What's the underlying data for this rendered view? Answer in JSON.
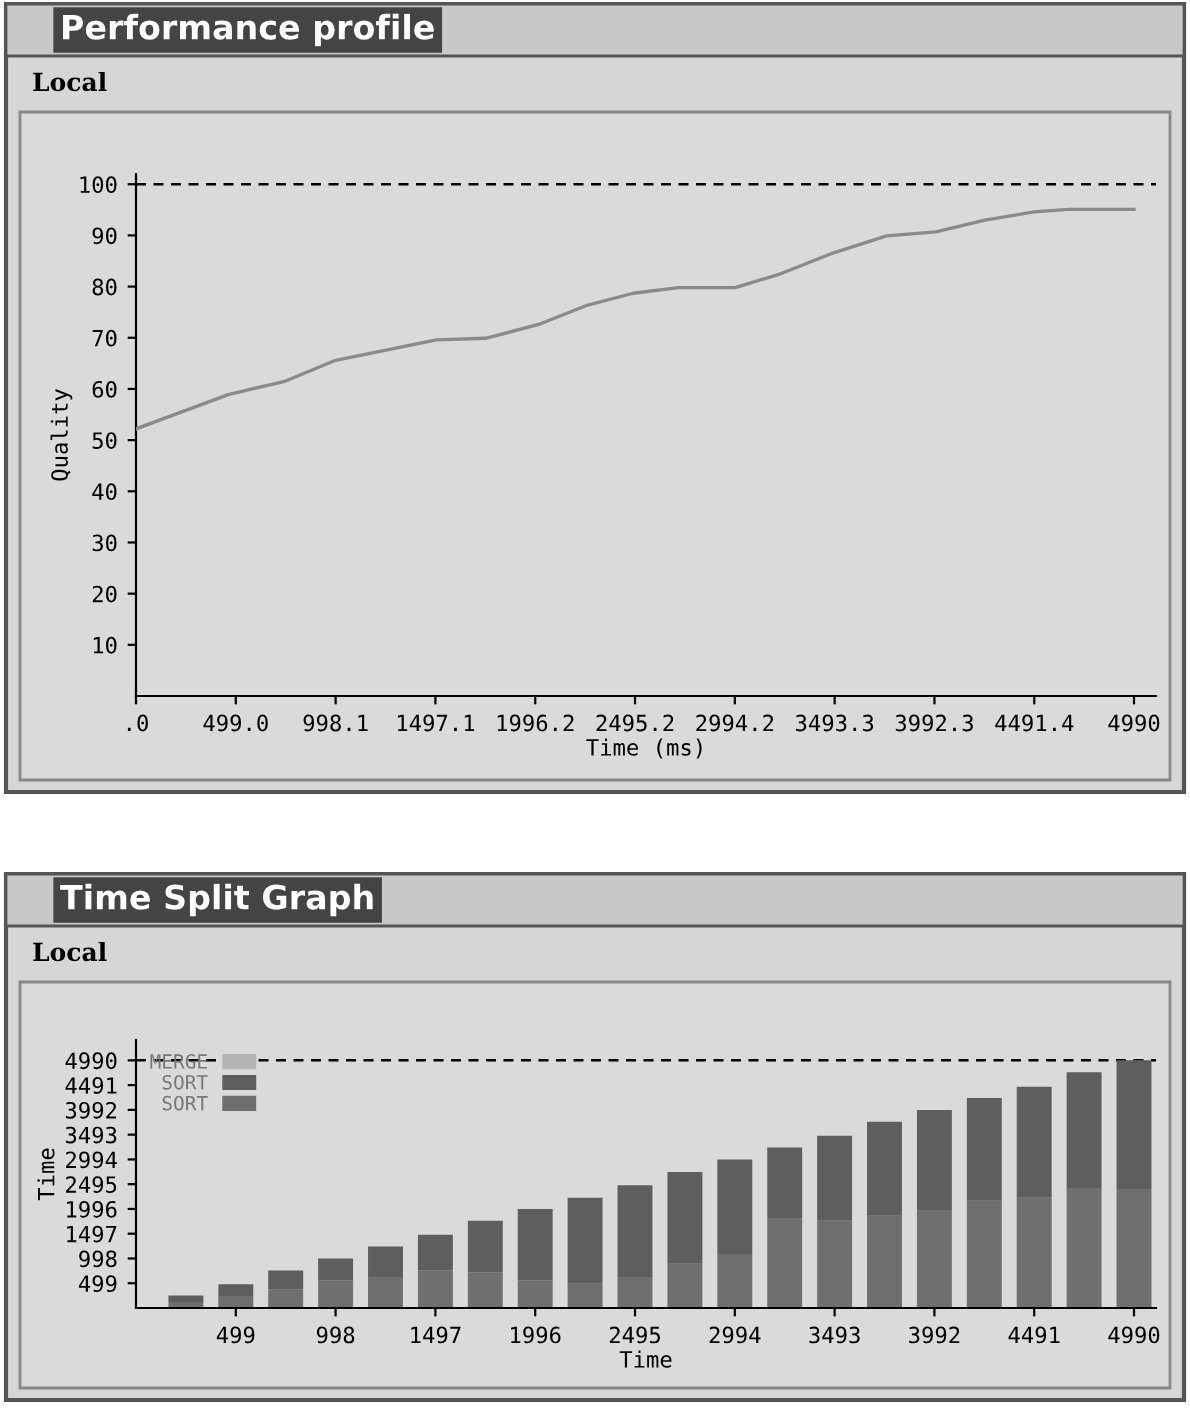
{
  "chart_data": [
    {
      "type": "line",
      "title": "Performance profile",
      "subtitle": "Local",
      "xlabel": "Time (ms)",
      "ylabel": "Quality",
      "x": [
        0,
        461,
        745,
        998,
        1502,
        1748,
        2013,
        2259,
        2486,
        2713,
        2996,
        3223,
        3488,
        3753,
        3999,
        4245,
        4491,
        4661,
        4990
      ],
      "series": [
        {
          "color": "#8a8a8a",
          "values": [
            52.2,
            58.9,
            61.5,
            65.6,
            69.6,
            69.9,
            72.6,
            76.4,
            78.7,
            79.8,
            79.8,
            82.5,
            86.6,
            89.9,
            90.7,
            93.0,
            94.6,
            95.1,
            95.1
          ]
        }
      ],
      "xlim": [
        0,
        5100
      ],
      "ylim": [
        0,
        102
      ],
      "xticks": [
        {
          "value": 0,
          "label": ".0"
        },
        {
          "value": 499.0,
          "label": "499.0"
        },
        {
          "value": 998.1,
          "label": "998.1"
        },
        {
          "value": 1497.1,
          "label": "1497.1"
        },
        {
          "value": 1996.2,
          "label": "1996.2"
        },
        {
          "value": 2495.2,
          "label": "2495.2"
        },
        {
          "value": 2994.2,
          "label": "2994.2"
        },
        {
          "value": 3493.3,
          "label": "3493.3"
        },
        {
          "value": 3992.3,
          "label": "3992.3"
        },
        {
          "value": 4491.4,
          "label": "4491.4"
        },
        {
          "value": 4990,
          "label": "4990"
        }
      ],
      "yticks": [
        10,
        20,
        30,
        40,
        50,
        60,
        70,
        80,
        90,
        100
      ],
      "ref_lines": [
        {
          "axis": "y",
          "value": 100,
          "line_style": "dashed",
          "color": "#000000"
        }
      ],
      "grid": false,
      "marker": "none",
      "line_style": "solid"
    },
    {
      "type": "bar",
      "stacked": true,
      "title": "Time Split Graph",
      "subtitle": "Local",
      "xlabel": "Time",
      "ylabel": "Time",
      "x": [
        249.5,
        499,
        748.5,
        998,
        1247.5,
        1497,
        1746.5,
        1996,
        2245.5,
        2495,
        2744.5,
        2994,
        3243.5,
        3493,
        3742.5,
        3992,
        4241.5,
        4491,
        4740.5,
        4990
      ],
      "series": [
        {
          "name": "SORT",
          "color": "#6f6f6f",
          "values": [
            120,
            240,
            380,
            560,
            625,
            760,
            720,
            560,
            490,
            625,
            890,
            1090,
            1800,
            1760,
            1860,
            1960,
            2160,
            2220,
            2420,
            2400
          ]
        },
        {
          "name": "SORT",
          "color": "#5e5e5e",
          "values": [
            133,
            239,
            378,
            438,
            613,
            717,
            1037,
            1436,
            1732,
            1850,
            1851,
            1904,
            1434,
            1713,
            1893,
            2032,
            2072,
            2238,
            2331,
            2590
          ]
        },
        {
          "name": "MERGE",
          "color": "#b4b4b4",
          "values": [
            0,
            0,
            0,
            0,
            0,
            0,
            0,
            0,
            0,
            0,
            0,
            0,
            0,
            0,
            0,
            0,
            0,
            0,
            0,
            0
          ]
        }
      ],
      "xlim": [
        0,
        5100
      ],
      "ylim": [
        0,
        5400
      ],
      "xticks": [
        499,
        998,
        1497,
        1996,
        2495,
        2994,
        3493,
        3992,
        4491,
        4990
      ],
      "yticks": [
        499,
        998,
        1497,
        1996,
        2495,
        2994,
        3493,
        3992,
        4491,
        4990
      ],
      "ref_lines": [
        {
          "axis": "y",
          "value": 4990,
          "line_style": "dashed",
          "color": "#000000"
        }
      ],
      "grid": false,
      "legend": "top left"
    }
  ]
}
